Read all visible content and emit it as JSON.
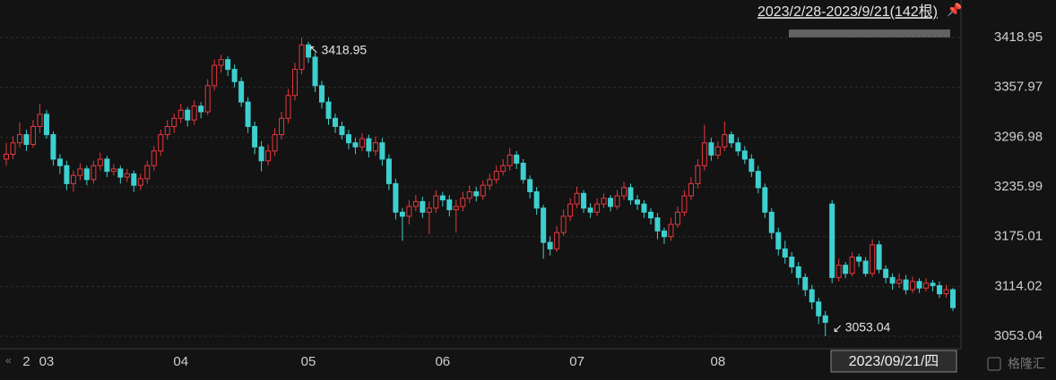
{
  "chart_data": {
    "type": "candlestick",
    "title": "2023/2/28-2023/9/21(142根)",
    "date_label": "2023/09/21/四",
    "watermark": "格隆汇",
    "up_color": "#e8383d",
    "down_color": "#3ecfcf",
    "ylim": [
      3037.7,
      3465
    ],
    "yticks": [
      3053.04,
      3114.02,
      3175.01,
      3235.99,
      3296.98,
      3357.97,
      3418.95
    ],
    "xlim": [
      -0.5,
      141.5
    ],
    "xticks": [
      {
        "value": 3,
        "label": "2"
      },
      {
        "value": 6,
        "label": "03"
      },
      {
        "value": 26,
        "label": "04"
      },
      {
        "value": 45,
        "label": "05"
      },
      {
        "value": 65,
        "label": "06"
      },
      {
        "value": 85,
        "label": "07"
      },
      {
        "value": 106,
        "label": "08"
      }
    ],
    "grid": true,
    "high_label": 3418.95,
    "low_label": 3053.04,
    "ohlc": [
      [
        3270,
        3290,
        3262,
        3276
      ],
      [
        3276,
        3298,
        3270,
        3290
      ],
      [
        3290,
        3315,
        3284,
        3300
      ],
      [
        3300,
        3306,
        3280,
        3288
      ],
      [
        3288,
        3318,
        3284,
        3310
      ],
      [
        3310,
        3338,
        3302,
        3325
      ],
      [
        3325,
        3330,
        3295,
        3300
      ],
      [
        3300,
        3304,
        3262,
        3270
      ],
      [
        3270,
        3276,
        3252,
        3262
      ],
      [
        3262,
        3268,
        3232,
        3240
      ],
      [
        3240,
        3256,
        3230,
        3250
      ],
      [
        3250,
        3265,
        3244,
        3258
      ],
      [
        3258,
        3262,
        3238,
        3245
      ],
      [
        3245,
        3268,
        3240,
        3262
      ],
      [
        3262,
        3278,
        3256,
        3270
      ],
      [
        3270,
        3274,
        3248,
        3255
      ],
      [
        3255,
        3264,
        3250,
        3258
      ],
      [
        3258,
        3262,
        3240,
        3248
      ],
      [
        3248,
        3258,
        3242,
        3252
      ],
      [
        3252,
        3256,
        3230,
        3238
      ],
      [
        3238,
        3252,
        3232,
        3246
      ],
      [
        3246,
        3268,
        3240,
        3262
      ],
      [
        3262,
        3286,
        3256,
        3280
      ],
      [
        3280,
        3306,
        3274,
        3300
      ],
      [
        3300,
        3318,
        3294,
        3310
      ],
      [
        3310,
        3326,
        3302,
        3320
      ],
      [
        3320,
        3338,
        3314,
        3330
      ],
      [
        3330,
        3334,
        3310,
        3318
      ],
      [
        3318,
        3342,
        3312,
        3335
      ],
      [
        3335,
        3340,
        3320,
        3328
      ],
      [
        3328,
        3368,
        3324,
        3360
      ],
      [
        3360,
        3392,
        3354,
        3385
      ],
      [
        3385,
        3398,
        3376,
        3392
      ],
      [
        3392,
        3396,
        3372,
        3380
      ],
      [
        3380,
        3386,
        3358,
        3365
      ],
      [
        3365,
        3370,
        3334,
        3340
      ],
      [
        3340,
        3346,
        3302,
        3310
      ],
      [
        3310,
        3316,
        3276,
        3285
      ],
      [
        3285,
        3292,
        3255,
        3268
      ],
      [
        3268,
        3288,
        3262,
        3280
      ],
      [
        3280,
        3308,
        3274,
        3300
      ],
      [
        3300,
        3328,
        3294,
        3320
      ],
      [
        3320,
        3356,
        3314,
        3348
      ],
      [
        3348,
        3388,
        3342,
        3380
      ],
      [
        3380,
        3418.95,
        3374,
        3410
      ],
      [
        3410,
        3414,
        3388,
        3395
      ],
      [
        3395,
        3400,
        3352,
        3360
      ],
      [
        3360,
        3366,
        3332,
        3340
      ],
      [
        3340,
        3346,
        3312,
        3320
      ],
      [
        3320,
        3326,
        3302,
        3310
      ],
      [
        3310,
        3316,
        3294,
        3300
      ],
      [
        3300,
        3306,
        3282,
        3290
      ],
      [
        3290,
        3296,
        3276,
        3285
      ],
      [
        3285,
        3302,
        3280,
        3295
      ],
      [
        3295,
        3300,
        3272,
        3280
      ],
      [
        3280,
        3298,
        3274,
        3290
      ],
      [
        3290,
        3296,
        3262,
        3270
      ],
      [
        3270,
        3276,
        3232,
        3240
      ],
      [
        3240,
        3246,
        3196,
        3205
      ],
      [
        3205,
        3210,
        3170,
        3200
      ],
      [
        3200,
        3220,
        3190,
        3212
      ],
      [
        3212,
        3226,
        3206,
        3218
      ],
      [
        3218,
        3224,
        3198,
        3205
      ],
      [
        3205,
        3218,
        3178,
        3210
      ],
      [
        3210,
        3232,
        3204,
        3225
      ],
      [
        3225,
        3230,
        3212,
        3220
      ],
      [
        3220,
        3226,
        3200,
        3208
      ],
      [
        3208,
        3220,
        3180,
        3212
      ],
      [
        3212,
        3230,
        3206,
        3222
      ],
      [
        3222,
        3238,
        3216,
        3230
      ],
      [
        3230,
        3236,
        3218,
        3225
      ],
      [
        3225,
        3244,
        3220,
        3238
      ],
      [
        3238,
        3252,
        3232,
        3245
      ],
      [
        3245,
        3262,
        3240,
        3255
      ],
      [
        3255,
        3270,
        3250,
        3262
      ],
      [
        3262,
        3284,
        3256,
        3275
      ],
      [
        3275,
        3280,
        3258,
        3265
      ],
      [
        3265,
        3270,
        3240,
        3245
      ],
      [
        3245,
        3250,
        3222,
        3230
      ],
      [
        3230,
        3236,
        3202,
        3210
      ],
      [
        3210,
        3214,
        3148,
        3168
      ],
      [
        3168,
        3175,
        3152,
        3160
      ],
      [
        3160,
        3188,
        3156,
        3180
      ],
      [
        3180,
        3208,
        3176,
        3200
      ],
      [
        3200,
        3222,
        3194,
        3215
      ],
      [
        3215,
        3236,
        3210,
        3228
      ],
      [
        3228,
        3232,
        3204,
        3210
      ],
      [
        3210,
        3216,
        3198,
        3205
      ],
      [
        3205,
        3222,
        3200,
        3215
      ],
      [
        3215,
        3228,
        3210,
        3222
      ],
      [
        3222,
        3226,
        3206,
        3212
      ],
      [
        3212,
        3232,
        3208,
        3225
      ],
      [
        3225,
        3242,
        3220,
        3235
      ],
      [
        3235,
        3240,
        3214,
        3220
      ],
      [
        3220,
        3226,
        3208,
        3215
      ],
      [
        3215,
        3220,
        3198,
        3205
      ],
      [
        3205,
        3210,
        3190,
        3198
      ],
      [
        3198,
        3204,
        3172,
        3182
      ],
      [
        3182,
        3186,
        3166,
        3175
      ],
      [
        3175,
        3198,
        3170,
        3190
      ],
      [
        3190,
        3212,
        3186,
        3205
      ],
      [
        3205,
        3232,
        3200,
        3225
      ],
      [
        3225,
        3248,
        3220,
        3240
      ],
      [
        3240,
        3270,
        3234,
        3262
      ],
      [
        3262,
        3312,
        3256,
        3290
      ],
      [
        3290,
        3296,
        3268,
        3275
      ],
      [
        3275,
        3292,
        3270,
        3285
      ],
      [
        3285,
        3316,
        3280,
        3300
      ],
      [
        3300,
        3304,
        3284,
        3290
      ],
      [
        3290,
        3296,
        3274,
        3280
      ],
      [
        3280,
        3286,
        3264,
        3270
      ],
      [
        3270,
        3276,
        3248,
        3255
      ],
      [
        3255,
        3262,
        3228,
        3235
      ],
      [
        3235,
        3240,
        3198,
        3205
      ],
      [
        3205,
        3210,
        3172,
        3180
      ],
      [
        3180,
        3186,
        3152,
        3160
      ],
      [
        3160,
        3170,
        3142,
        3150
      ],
      [
        3150,
        3156,
        3130,
        3138
      ],
      [
        3138,
        3144,
        3116,
        3125
      ],
      [
        3125,
        3130,
        3102,
        3110
      ],
      [
        3110,
        3116,
        3086,
        3095
      ],
      [
        3095,
        3100,
        3068,
        3078
      ],
      [
        3078,
        3084,
        3053.04,
        3070
      ],
      [
        3215,
        3220,
        3118,
        3125
      ],
      [
        3125,
        3148,
        3120,
        3140
      ],
      [
        3140,
        3144,
        3124,
        3130
      ],
      [
        3130,
        3156,
        3126,
        3150
      ],
      [
        3150,
        3154,
        3138,
        3145
      ],
      [
        3145,
        3150,
        3126,
        3130
      ],
      [
        3130,
        3172,
        3126,
        3165
      ],
      [
        3165,
        3170,
        3130,
        3135
      ],
      [
        3135,
        3140,
        3118,
        3125
      ],
      [
        3125,
        3130,
        3110,
        3118
      ],
      [
        3118,
        3130,
        3112,
        3122
      ],
      [
        3122,
        3128,
        3104,
        3110
      ],
      [
        3110,
        3126,
        3106,
        3120
      ],
      [
        3120,
        3124,
        3106,
        3112
      ],
      [
        3112,
        3124,
        3108,
        3118
      ],
      [
        3118,
        3122,
        3108,
        3115
      ],
      [
        3115,
        3120,
        3100,
        3105
      ],
      [
        3105,
        3116,
        3100,
        3110
      ],
      [
        3110,
        3112,
        3084,
        3088
      ]
    ]
  }
}
